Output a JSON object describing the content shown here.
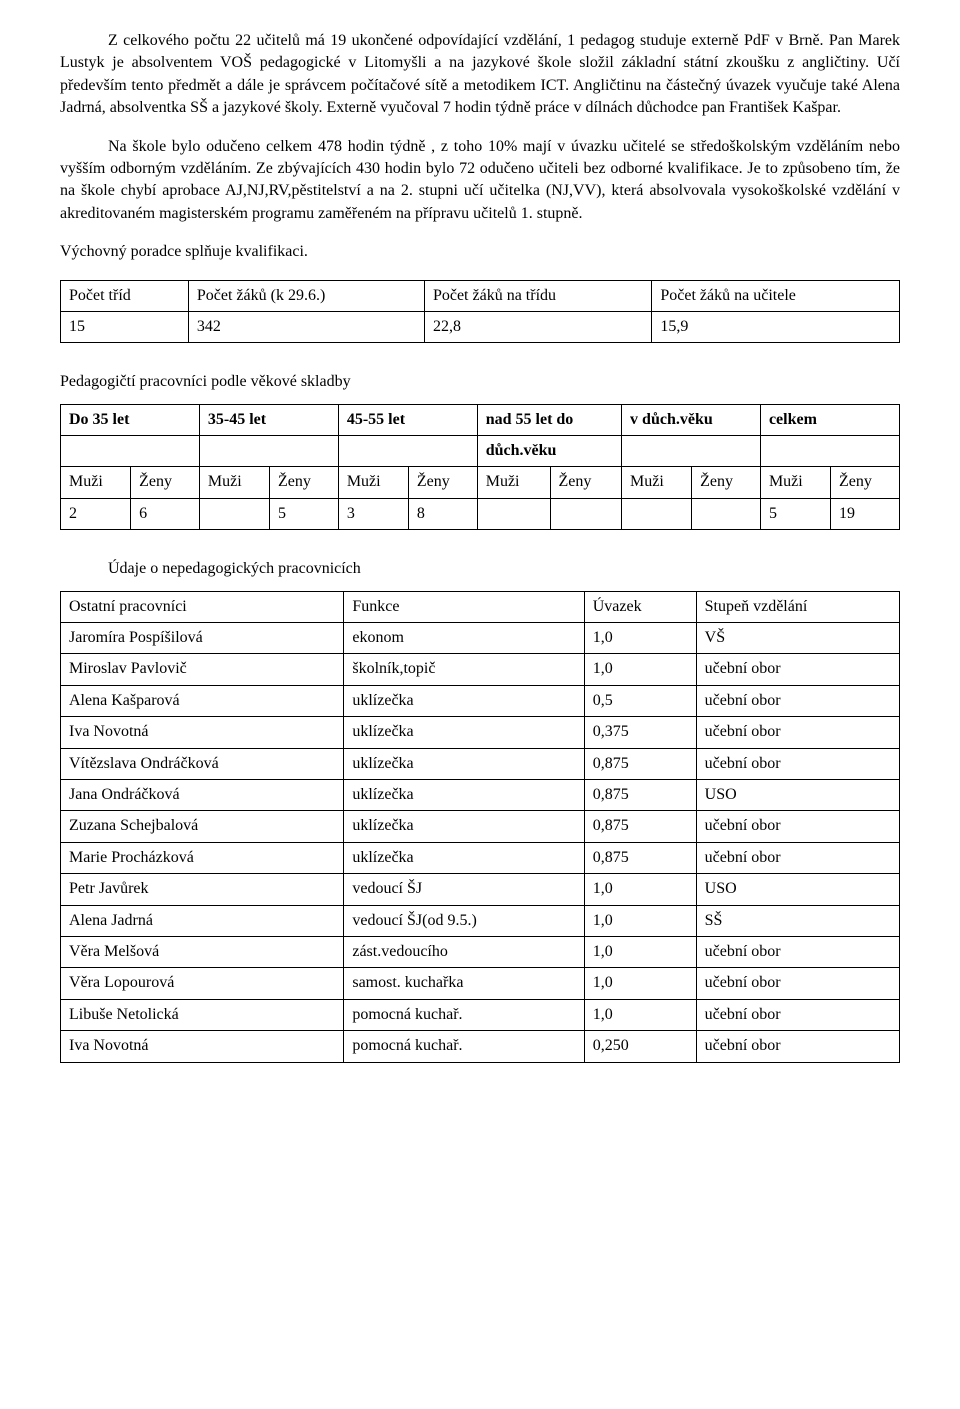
{
  "paragraphs": {
    "p1": "Z celkového počtu 22 učitelů má 19 ukončené odpovídající vzdělání, 1 pedagog studuje externě PdF v Brně. Pan Marek Lustyk je absolventem VOŠ pedagogické v Litomyšli a na jazykové škole složil základní státní zkoušku z angličtiny. Učí především tento předmět a dále je správcem počítačové sítě a metodikem ICT. Angličtinu na částečný úvazek vyučuje také Alena Jadrná, absolventka SŠ a jazykové školy. Externě vyučoval 7 hodin týdně práce v dílnách důchodce pan František Kašpar.",
    "p2": "Na škole bylo odučeno celkem 478 hodin týdně , z toho 10%  mají v úvazku učitelé se středoškolským vzděláním nebo vyšším odborným vzděláním. Ze zbývajících 430 hodin bylo 72 odučeno učiteli bez odborné kvalifikace. Je to způsobeno tím, že na škole chybí aprobace AJ,NJ,RV,pěstitelství a na 2. stupni učí  učitelka (NJ,VV), která absolvovala vysokoškolské vzdělání v akreditovaném magisterském programu zaměřeném na přípravu učitelů 1. stupně.",
    "p3": "Výchovný poradce splňuje kvalifikaci."
  },
  "table1": {
    "headers": [
      "Počet tříd",
      "Počet žáků (k 29.6.)",
      "Počet žáků na třídu",
      "Počet žáků na učitele"
    ],
    "row": [
      "15",
      "342",
      "22,8",
      "15,9"
    ]
  },
  "section2_title": "Pedagogičtí pracovníci podle věkové skladby",
  "table2": {
    "top_headers": [
      "Do 35 let",
      "35-45 let",
      "45-55 let",
      "nad 55 let do",
      "v důch.věku",
      "celkem"
    ],
    "mid_row": "důch.věku",
    "sub_m": "Muži",
    "sub_z": "Ženy",
    "data": [
      "2",
      "6",
      "",
      "5",
      "3",
      "8",
      "",
      "",
      "",
      "",
      "5",
      "19"
    ]
  },
  "section3_title": "Údaje o nepedagogických pracovnicích",
  "table3": {
    "headers": [
      "Ostatní pracovníci",
      "Funkce",
      "Úvazek",
      "Stupeň vzdělání"
    ],
    "rows": [
      [
        "Jaromíra Pospíšilová",
        "ekonom",
        "1,0",
        "VŠ"
      ],
      [
        "Miroslav Pavlovič",
        "školník,topič",
        "1,0",
        "učební obor"
      ],
      [
        "Alena Kašparová",
        "uklízečka",
        "0,5",
        "učební obor"
      ],
      [
        "Iva Novotná",
        "uklízečka",
        "0,375",
        "učební obor"
      ],
      [
        "Vítězslava Ondráčková",
        "uklízečka",
        "0,875",
        "učební obor"
      ],
      [
        "Jana Ondráčková",
        "uklízečka",
        "0,875",
        "USO"
      ],
      [
        "Zuzana Schejbalová",
        "uklízečka",
        "0,875",
        "učební obor"
      ],
      [
        "Marie Procházková",
        "uklízečka",
        "0,875",
        "učební obor"
      ],
      [
        "Petr Javůrek",
        "vedoucí ŠJ",
        "1,0",
        "USO"
      ],
      [
        "Alena Jadrná",
        "vedoucí ŠJ(od 9.5.)",
        "1,0",
        "SŠ"
      ],
      [
        "Věra Melšová",
        "zást.vedoucího",
        "1,0",
        "učební obor"
      ],
      [
        "Věra Lopourová",
        "samost. kuchařka",
        "1,0",
        "učební obor"
      ],
      [
        "Libuše Netolická",
        "pomocná kuchař.",
        "1,0",
        "učební obor"
      ],
      [
        "Iva Novotná",
        "pomocná kuchař.",
        "0,250",
        "učební obor"
      ]
    ]
  },
  "styling": {
    "font_family": "Times New Roman",
    "text_color": "#000000",
    "background_color": "#ffffff",
    "border_color": "#000000",
    "body_width": 960,
    "body_height": 1409,
    "base_fontsize": 16
  }
}
